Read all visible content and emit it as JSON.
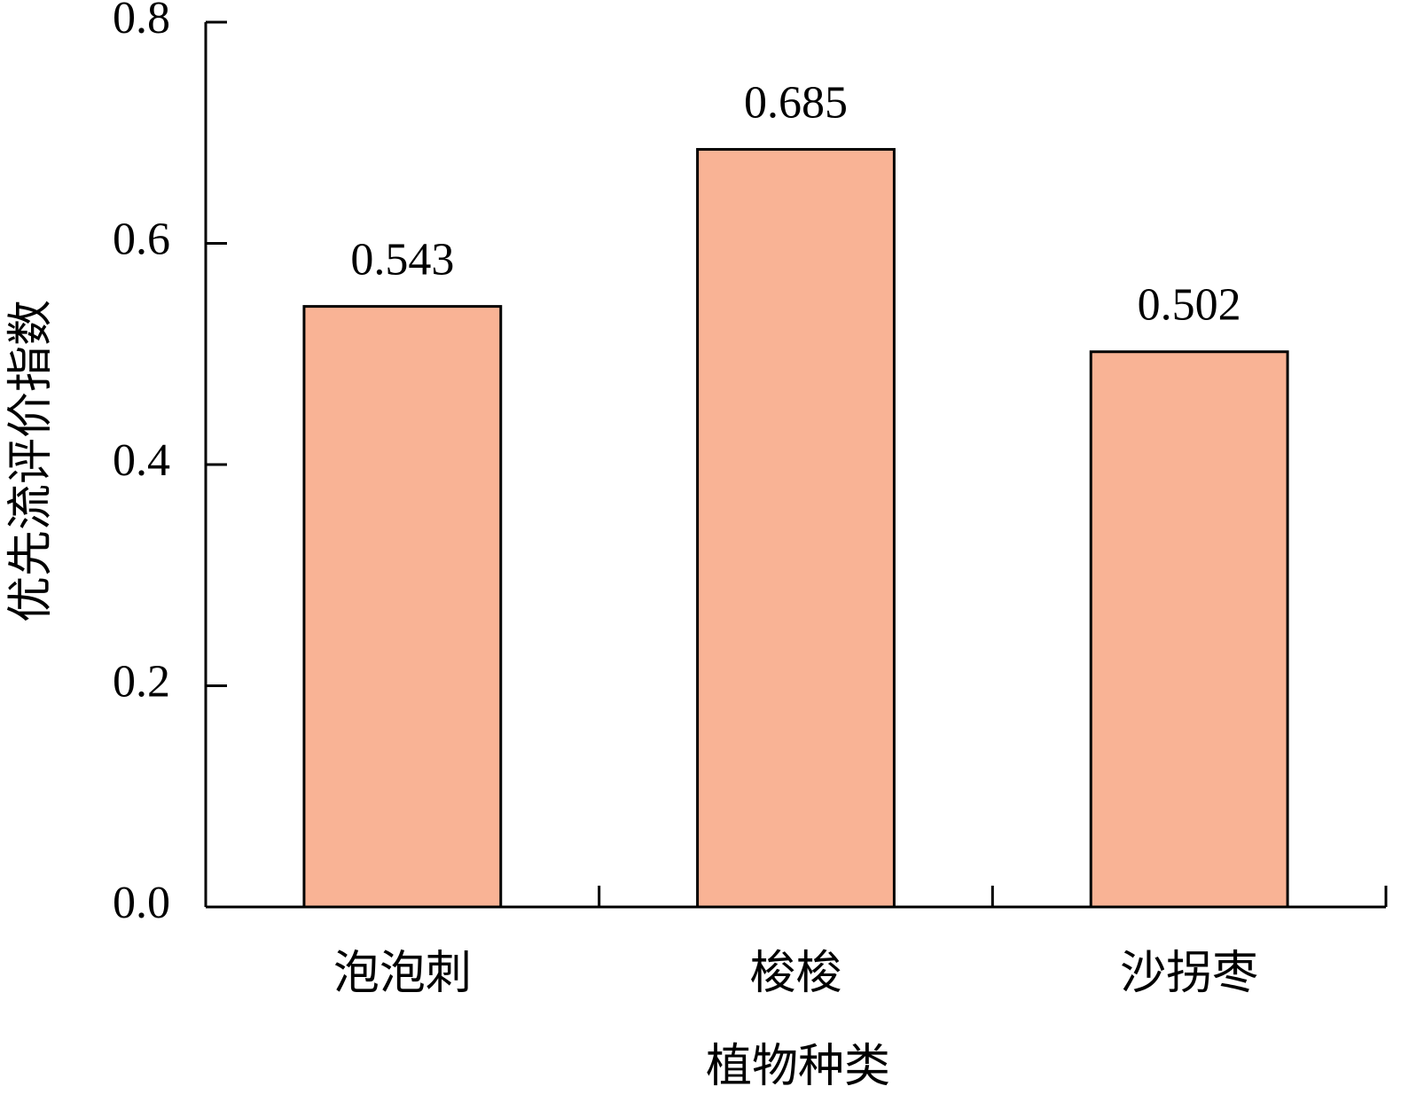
{
  "chart_data": {
    "type": "bar",
    "x_label": "植物种类",
    "y_label": "优先流评价指数",
    "categories": [
      "泡泡刺",
      "梭梭",
      "沙拐枣"
    ],
    "values": [
      0.543,
      0.685,
      0.502
    ],
    "color": "#f9b395",
    "ylim": [
      0,
      0.8
    ],
    "yticks": [
      {
        "value": 0,
        "label": "0.0"
      },
      0.2,
      0.4,
      0.6,
      0.8
    ]
  }
}
